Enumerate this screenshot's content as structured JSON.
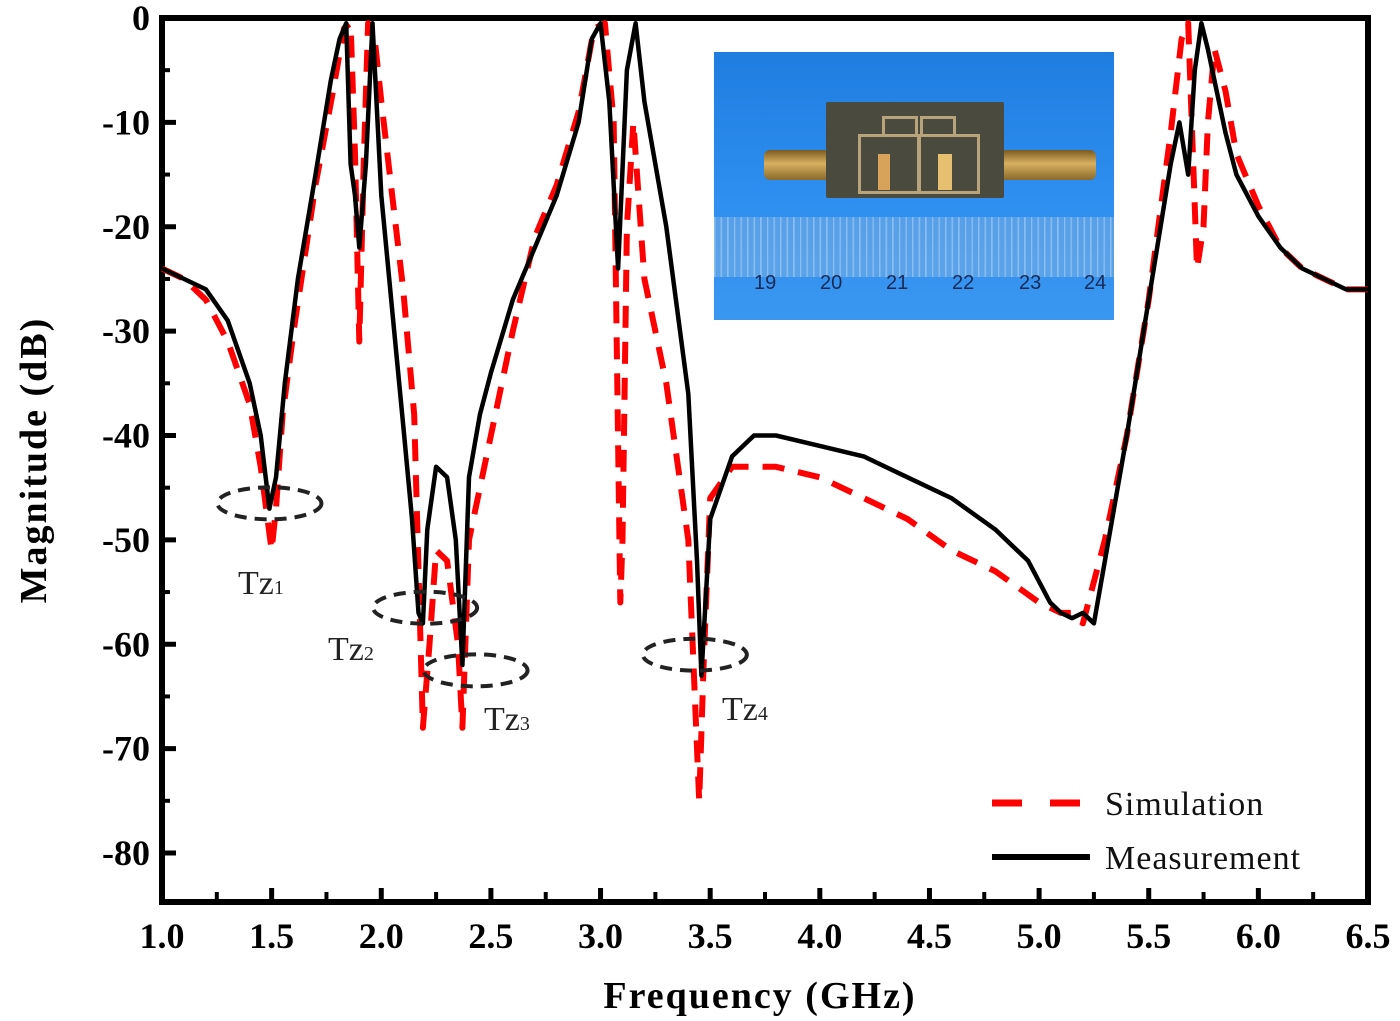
{
  "chart_data": {
    "type": "line",
    "title": "",
    "xlabel": "Frequency (GHz)",
    "ylabel": "Magnitude (dB)",
    "xlim": [
      1.0,
      6.5
    ],
    "ylim": [
      -85,
      0
    ],
    "x_ticks": [
      "1.0",
      "1.5",
      "2.0",
      "2.5",
      "3.0",
      "3.5",
      "4.0",
      "4.5",
      "5.0",
      "5.5",
      "6.0",
      "6.5"
    ],
    "y_ticks": [
      "0",
      "-10",
      "-20",
      "-30",
      "-40",
      "-50",
      "-60",
      "-70",
      "-80"
    ],
    "grid": false,
    "legend_position": "lower right",
    "series": [
      {
        "name": "Simulation",
        "style": "dashed",
        "color": "#ff0000",
        "x": [
          1.0,
          1.1,
          1.2,
          1.3,
          1.4,
          1.45,
          1.5,
          1.52,
          1.55,
          1.6,
          1.7,
          1.78,
          1.83,
          1.86,
          1.88,
          1.9,
          1.92,
          1.94,
          1.97,
          2.0,
          2.05,
          2.1,
          2.15,
          2.19,
          2.22,
          2.25,
          2.3,
          2.35,
          2.37,
          2.4,
          2.5,
          2.6,
          2.7,
          2.8,
          2.9,
          2.97,
          3.02,
          3.06,
          3.09,
          3.1,
          3.12,
          3.15,
          3.2,
          3.3,
          3.4,
          3.45,
          3.47,
          3.5,
          3.6,
          3.7,
          3.8,
          4.0,
          4.2,
          4.4,
          4.6,
          4.8,
          5.0,
          5.1,
          5.15,
          5.2,
          5.3,
          5.4,
          5.5,
          5.6,
          5.65,
          5.68,
          5.72,
          5.75,
          5.77,
          5.8,
          5.85,
          5.9,
          6.0,
          6.1,
          6.2,
          6.3,
          6.4,
          6.5
        ],
        "values": [
          -24,
          -25,
          -27,
          -31,
          -37,
          -43,
          -51,
          -47,
          -38,
          -30,
          -16,
          -7,
          -1,
          -0.5,
          -13,
          -31,
          -14,
          -0.5,
          -2,
          -8,
          -17,
          -26,
          -38,
          -68,
          -60,
          -51,
          -52,
          -60,
          -68,
          -50,
          -40,
          -30,
          -21,
          -16,
          -9,
          -1,
          -0.5,
          -10,
          -56,
          -50,
          -20,
          -10,
          -25,
          -35,
          -50,
          -75,
          -62,
          -46,
          -43,
          -43,
          -43,
          -44,
          -46,
          -48,
          -51,
          -53,
          -56,
          -57,
          -57,
          -58,
          -50,
          -40,
          -27,
          -11,
          -2,
          -0.5,
          -24,
          -20,
          -10,
          -3,
          -7,
          -13,
          -18,
          -22,
          -24,
          -25,
          -26,
          -26
        ]
      },
      {
        "name": "Measurement",
        "style": "solid",
        "color": "#000000",
        "x": [
          1.0,
          1.1,
          1.2,
          1.3,
          1.4,
          1.45,
          1.49,
          1.52,
          1.56,
          1.62,
          1.7,
          1.77,
          1.81,
          1.84,
          1.86,
          1.88,
          1.9,
          1.93,
          1.96,
          2.0,
          2.05,
          2.1,
          2.14,
          2.17,
          2.19,
          2.21,
          2.25,
          2.3,
          2.34,
          2.37,
          2.4,
          2.45,
          2.5,
          2.6,
          2.7,
          2.8,
          2.9,
          2.96,
          3.0,
          3.04,
          3.08,
          3.12,
          3.16,
          3.2,
          3.3,
          3.4,
          3.44,
          3.46,
          3.5,
          3.6,
          3.7,
          3.8,
          4.0,
          4.2,
          4.4,
          4.6,
          4.8,
          4.95,
          5.05,
          5.1,
          5.15,
          5.2,
          5.25,
          5.3,
          5.4,
          5.5,
          5.6,
          5.64,
          5.68,
          5.71,
          5.74,
          5.77,
          5.8,
          5.85,
          5.9,
          6.0,
          6.1,
          6.2,
          6.3,
          6.4,
          6.5
        ],
        "values": [
          -24,
          -25,
          -26,
          -29,
          -35,
          -40,
          -47,
          -44,
          -35,
          -25,
          -15,
          -6,
          -2,
          -0.5,
          -14,
          -17,
          -22,
          -14,
          -0.5,
          -17,
          -28,
          -39,
          -48,
          -57,
          -58,
          -49,
          -43,
          -44,
          -50,
          -62,
          -44,
          -38,
          -34,
          -27,
          -22,
          -17,
          -10,
          -2,
          -0.5,
          -8,
          -24,
          -5,
          -0.5,
          -8,
          -20,
          -36,
          -52,
          -63,
          -48,
          -42,
          -40,
          -40,
          -41,
          -42,
          -44,
          -46,
          -49,
          -52,
          -56,
          -57,
          -57.5,
          -57,
          -58,
          -52,
          -40,
          -27,
          -14,
          -10,
          -15,
          -5,
          -0.5,
          -3,
          -6,
          -11,
          -15,
          -19,
          -22,
          -24,
          -25,
          -26,
          -26
        ]
      }
    ],
    "annotations": [
      {
        "label": "Tz1",
        "x": 1.49,
        "y": -46.5
      },
      {
        "label": "Tz2",
        "x": 2.2,
        "y": -56.5
      },
      {
        "label": "Tz3",
        "x": 2.43,
        "y": -62.5
      },
      {
        "label": "Tz4",
        "x": 3.43,
        "y": -61
      }
    ]
  },
  "axes": {
    "x_title": "Frequency (GHz)",
    "y_title": "Magnitude (dB)"
  },
  "legend": {
    "items": [
      {
        "label": "Simulation",
        "color": "#ff0000",
        "style": "dashed"
      },
      {
        "label": "Measurement",
        "color": "#000000",
        "style": "solid"
      }
    ]
  },
  "annotations": {
    "tz1": {
      "main": "Tz",
      "sub": "1"
    },
    "tz2": {
      "main": "Tz",
      "sub": "2"
    },
    "tz3": {
      "main": "Tz",
      "sub": "3"
    },
    "tz4": {
      "main": "Tz",
      "sub": "4"
    }
  },
  "inset_photo": {
    "description": "fabricated filter photo with SMA connectors over a ruler",
    "ruler_numbers": [
      "19",
      "20",
      "21",
      "22",
      "23",
      "24"
    ]
  }
}
